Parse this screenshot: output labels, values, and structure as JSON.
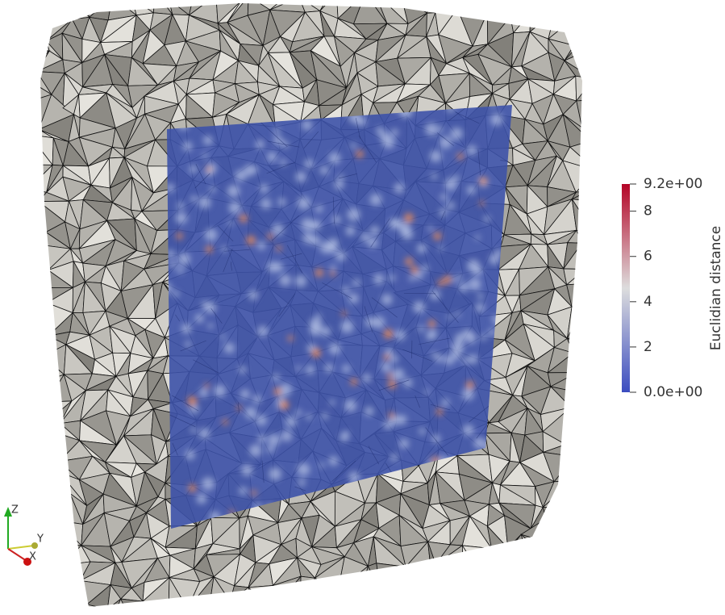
{
  "colorbar": {
    "title": "Euclidian distance",
    "range": [
      0,
      9.2
    ],
    "ticks": [
      {
        "value": 9.2,
        "label": "9.2e+00"
      },
      8,
      6,
      4,
      2,
      {
        "value": 0,
        "label": "0.0e+00"
      }
    ]
  },
  "axes": {
    "z": "Z",
    "y": "Y",
    "x": "X"
  }
}
